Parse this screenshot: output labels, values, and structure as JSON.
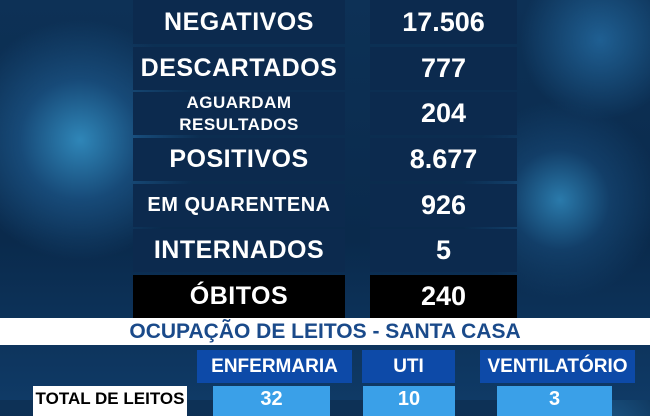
{
  "stats": [
    {
      "label": "NEGATIVOS",
      "value": "17.506"
    },
    {
      "label": "DESCARTADOS",
      "value": "777"
    },
    {
      "label_line1": "AGUARDAM",
      "label_line2": "RESULTADOS",
      "value": "204"
    },
    {
      "label": "POSITIVOS",
      "value": "8.677"
    },
    {
      "label": "EM QUARENTENA",
      "value": "926"
    },
    {
      "label": "INTERNADOS",
      "value": "5"
    },
    {
      "label": "ÓBITOS",
      "value": "240"
    }
  ],
  "beds": {
    "title": "OCUPAÇÃO DE LEITOS - SANTA CASA",
    "columns": [
      "ENFERMARIA",
      "UTI",
      "VENTILATÓRIO"
    ],
    "rows": [
      {
        "label": "TOTAL DE LEITOS",
        "values": [
          "32",
          "10",
          "3"
        ]
      }
    ]
  },
  "colors": {
    "cell_bg": "#0c2a4e",
    "obitos_bg": "#000000",
    "header_bg": "#0d4aa8",
    "value_bg": "#3aa0e8",
    "title_color": "#1a4a8a"
  }
}
